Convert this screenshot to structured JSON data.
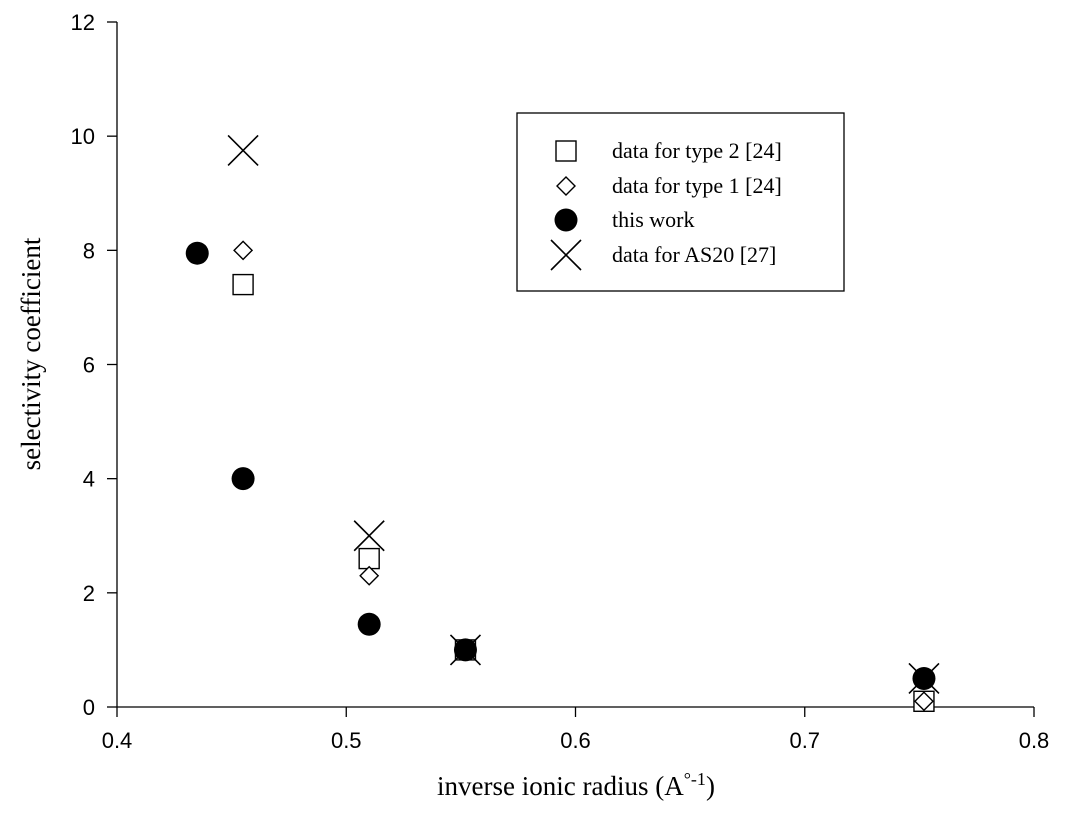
{
  "chart_data": {
    "type": "scatter",
    "title": "",
    "xlabel": "inverse ionic radius (A",
    "xlabel_superscript": "°-1",
    "xlabel_suffix": ")",
    "ylabel": "selectivity coefficient",
    "xlim": [
      0.4,
      0.8
    ],
    "ylim": [
      0,
      12
    ],
    "x_ticks": [
      "0.4",
      "0.5",
      "0.6",
      "0.7",
      "0.8"
    ],
    "y_ticks": [
      "0",
      "2",
      "4",
      "6",
      "8",
      "10",
      "12"
    ],
    "grid": false,
    "legend_position": "top-right",
    "series": [
      {
        "name": "data for type 2 [24]",
        "marker": "square-open",
        "points": [
          {
            "x": 0.455,
            "y": 7.4
          },
          {
            "x": 0.51,
            "y": 2.6
          },
          {
            "x": 0.552,
            "y": 1.0
          },
          {
            "x": 0.752,
            "y": 0.1
          }
        ]
      },
      {
        "name": "data for type 1 [24]",
        "marker": "diamond-open",
        "points": [
          {
            "x": 0.455,
            "y": 8.0
          },
          {
            "x": 0.51,
            "y": 2.3
          },
          {
            "x": 0.552,
            "y": 1.0
          },
          {
            "x": 0.752,
            "y": 0.1
          }
        ]
      },
      {
        "name": "this work",
        "marker": "circle-filled",
        "points": [
          {
            "x": 0.435,
            "y": 7.95
          },
          {
            "x": 0.455,
            "y": 4.0
          },
          {
            "x": 0.51,
            "y": 1.45
          },
          {
            "x": 0.552,
            "y": 1.0
          },
          {
            "x": 0.752,
            "y": 0.5
          }
        ]
      },
      {
        "name": "data for AS20 [27]",
        "marker": "x-cross",
        "points": [
          {
            "x": 0.455,
            "y": 9.75
          },
          {
            "x": 0.51,
            "y": 3.0
          },
          {
            "x": 0.552,
            "y": 1.0
          },
          {
            "x": 0.752,
            "y": 0.5
          }
        ]
      }
    ]
  }
}
